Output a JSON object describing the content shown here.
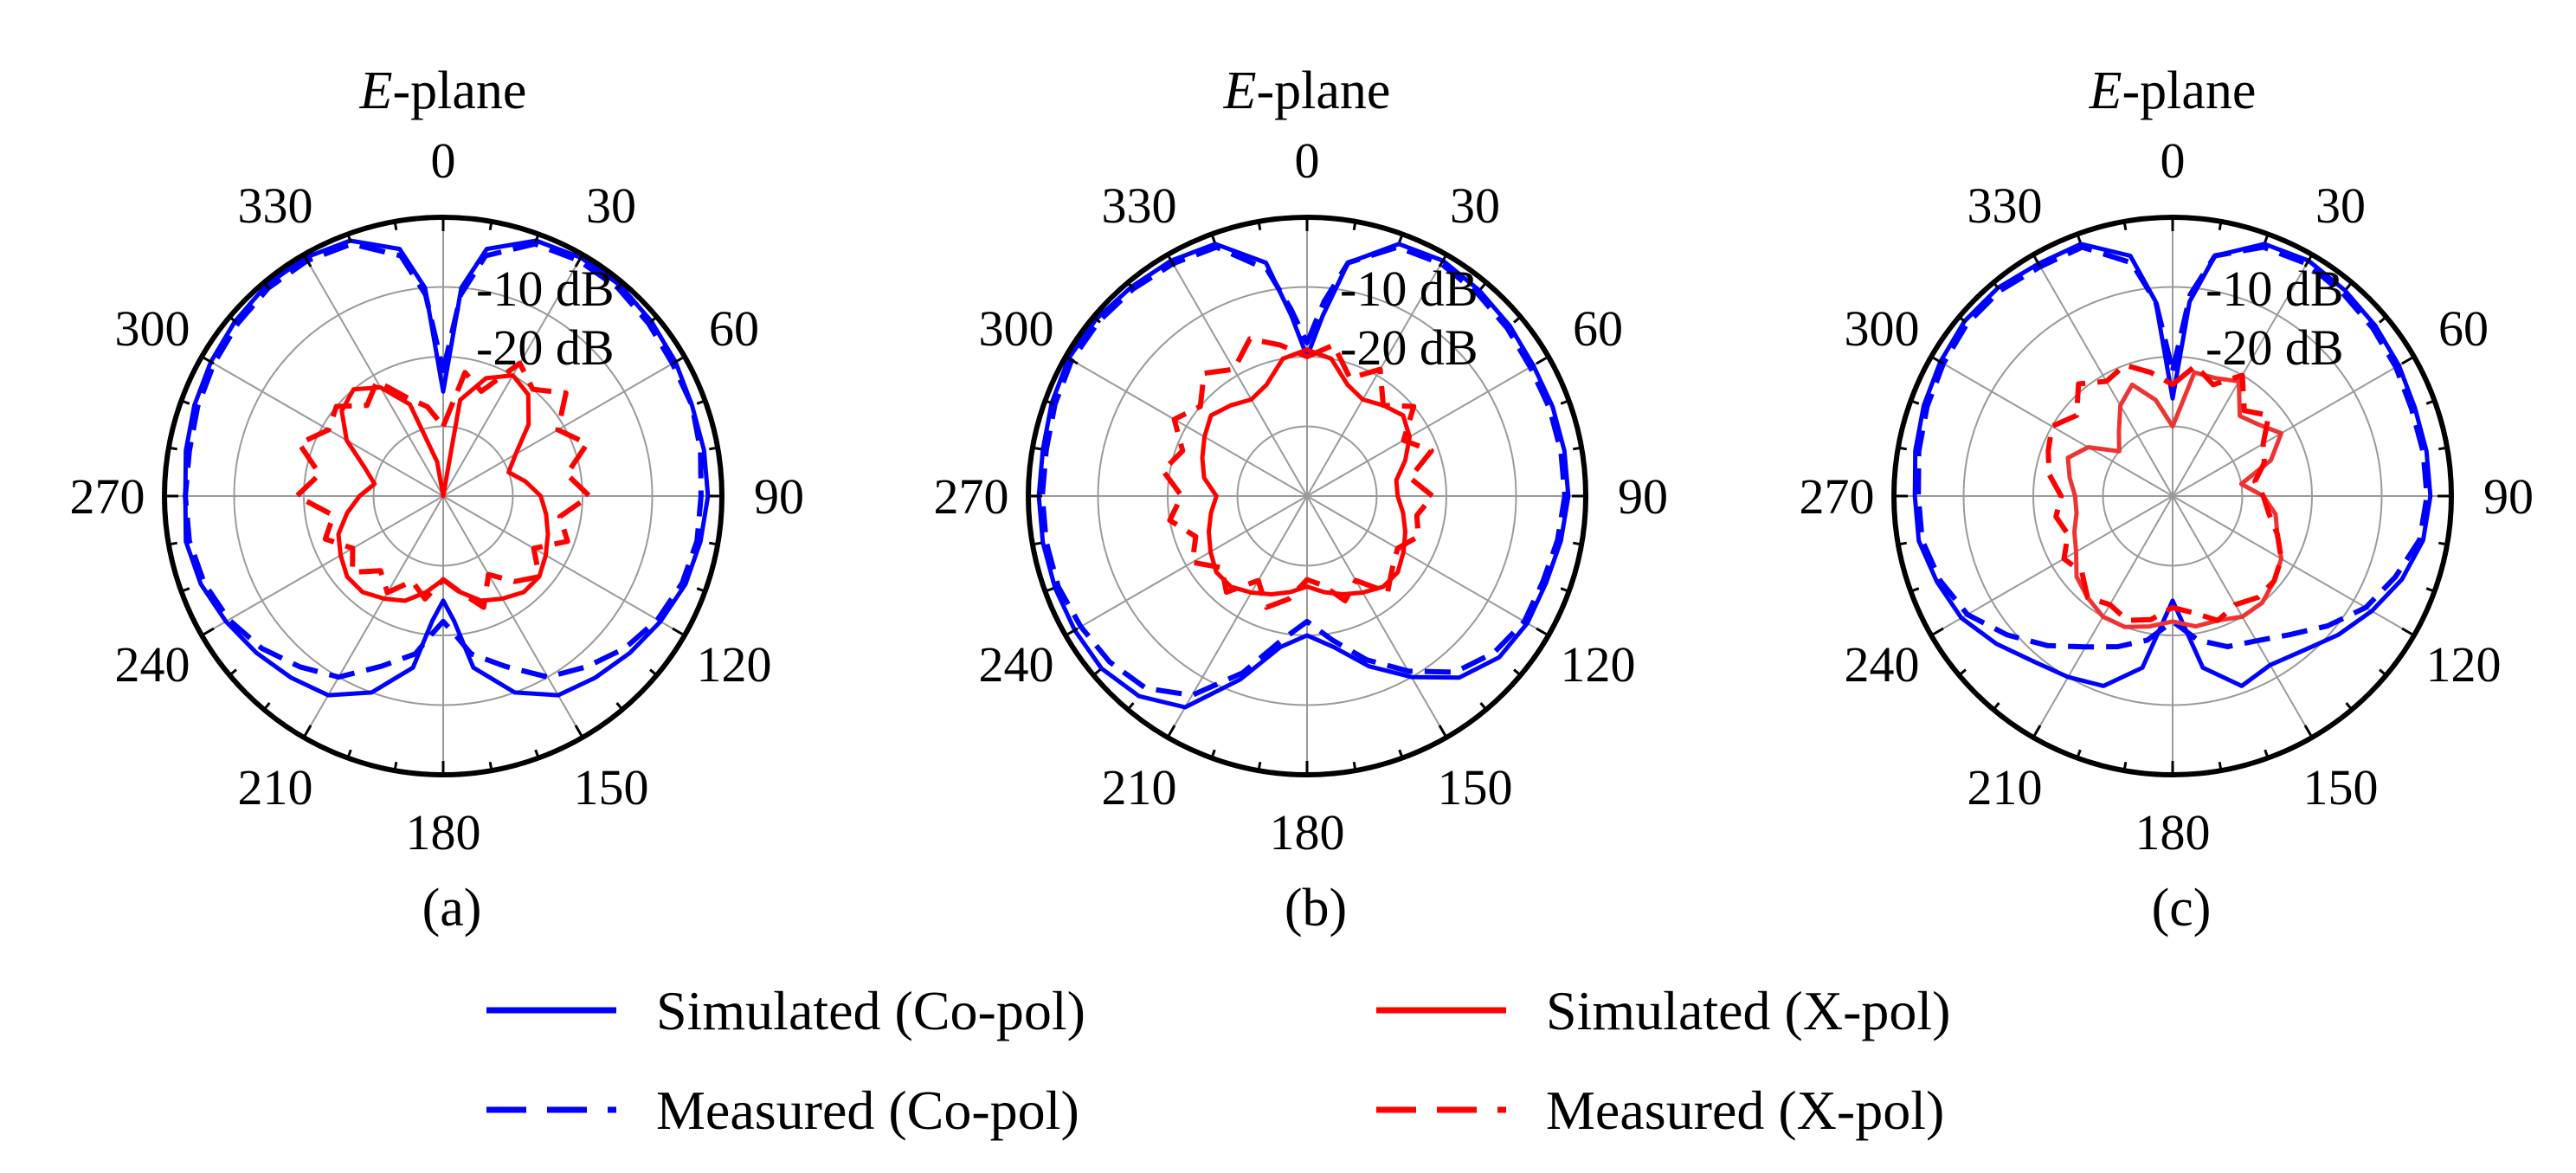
{
  "chart_data": [
    {
      "type": "polar-line",
      "panel": "(a)",
      "title_italic": "E",
      "title_rest": "-plane",
      "caption": "(a)",
      "angle_ticks": [
        "0",
        "30",
        "60",
        "90",
        "120",
        "150",
        "180",
        "210",
        "240",
        "270",
        "300",
        "330"
      ],
      "ring_labels": [
        "-10 dB",
        "-20 dB"
      ],
      "r_range_dB": [
        -40,
        0
      ],
      "series": [
        {
          "name": "Simulated (Co-pol)",
          "color": "#0000ff",
          "style": "solid",
          "angles": [
            0,
            5,
            10,
            20,
            30,
            40,
            50,
            60,
            70,
            80,
            90,
            100,
            110,
            120,
            130,
            140,
            150,
            160,
            170,
            175,
            180,
            185,
            190,
            200,
            210,
            220,
            230,
            240,
            250,
            260,
            270,
            280,
            290,
            300,
            310,
            320,
            330,
            340,
            350,
            355
          ],
          "values": [
            -25,
            -10,
            -4,
            -1,
            -0.5,
            -0.5,
            -1,
            -1.5,
            -2,
            -2,
            -2,
            -2.5,
            -3,
            -4,
            -5,
            -6,
            -7,
            -10,
            -15,
            -22,
            -25,
            -22,
            -15,
            -10,
            -7,
            -6,
            -5,
            -4,
            -3,
            -2.5,
            -3,
            -2.5,
            -2,
            -1.5,
            -1,
            -0.5,
            -0.5,
            -1,
            -4,
            -10
          ]
        },
        {
          "name": "Measured (Co-pol)",
          "color": "#0000ff",
          "style": "dashed",
          "angles": [
            0,
            5,
            10,
            20,
            30,
            40,
            50,
            60,
            70,
            80,
            90,
            100,
            110,
            120,
            130,
            140,
            150,
            160,
            170,
            175,
            180,
            185,
            190,
            200,
            210,
            220,
            230,
            240,
            250,
            260,
            270,
            280,
            290,
            300,
            310,
            320,
            330,
            340,
            350,
            355
          ],
          "values": [
            -22,
            -11,
            -5,
            -1.5,
            -1,
            -1,
            -1.5,
            -2,
            -2,
            -2.5,
            -3,
            -3,
            -3.5,
            -4.5,
            -6,
            -8,
            -10,
            -14,
            -17,
            -20,
            -22,
            -20,
            -17,
            -14,
            -10,
            -8,
            -6,
            -4.5,
            -3.5,
            -3,
            -3,
            -3,
            -2.5,
            -2,
            -1.5,
            -1,
            -1,
            -1.5,
            -5,
            -11
          ]
        },
        {
          "name": "Simulated (X-pol)",
          "color": "#ff0000",
          "style": "solid",
          "angles": [
            0,
            10,
            20,
            30,
            40,
            50,
            60,
            70,
            80,
            90,
            100,
            110,
            120,
            130,
            140,
            150,
            160,
            170,
            180,
            190,
            200,
            210,
            220,
            230,
            240,
            250,
            260,
            270,
            280,
            290,
            300,
            310,
            320,
            330,
            340,
            350
          ],
          "values": [
            -40,
            -26,
            -22,
            -20,
            -21,
            -24,
            -28,
            -30,
            -28,
            -26,
            -25,
            -24,
            -23,
            -22,
            -22,
            -23,
            -24,
            -26,
            -28,
            -26,
            -24,
            -23,
            -22,
            -22,
            -23,
            -24,
            -26,
            -28,
            -30,
            -28,
            -24,
            -21,
            -20,
            -22,
            -26,
            -35
          ]
        },
        {
          "name": "Measured (X-pol)",
          "color": "#ff0000",
          "style": "dashed",
          "angles": [
            0,
            10,
            20,
            30,
            40,
            50,
            60,
            70,
            80,
            90,
            100,
            110,
            120,
            130,
            140,
            150,
            160,
            170,
            180,
            190,
            200,
            210,
            220,
            230,
            240,
            250,
            260,
            270,
            280,
            290,
            300,
            310,
            320,
            330,
            340,
            350
          ],
          "values": [
            -30,
            -22,
            -24,
            -18,
            -20,
            -17,
            -21,
            -18,
            -22,
            -19,
            -23,
            -21,
            -25,
            -22,
            -24,
            -27,
            -23,
            -26,
            -28,
            -25,
            -27,
            -24,
            -26,
            -23,
            -25,
            -22,
            -24,
            -19,
            -22,
            -18,
            -21,
            -20,
            -23,
            -21,
            -25,
            -27
          ]
        }
      ]
    },
    {
      "type": "polar-line",
      "panel": "(b)",
      "title_italic": "E",
      "title_rest": "-plane",
      "caption": "(b)",
      "angle_ticks": [
        "0",
        "30",
        "60",
        "90",
        "120",
        "150",
        "180",
        "210",
        "240",
        "270",
        "300",
        "330"
      ],
      "ring_labels": [
        "-10 dB",
        "-20 dB"
      ],
      "r_range_dB": [
        -40,
        0
      ],
      "series": [
        {
          "name": "Simulated (Co-pol)",
          "color": "#0000ff",
          "style": "solid",
          "angles": [
            0,
            5,
            10,
            20,
            30,
            40,
            50,
            60,
            70,
            80,
            90,
            100,
            110,
            120,
            130,
            140,
            150,
            160,
            170,
            180,
            190,
            200,
            210,
            220,
            230,
            240,
            250,
            260,
            270,
            280,
            290,
            300,
            310,
            320,
            330,
            340,
            350,
            355
          ],
          "values": [
            -20,
            -14,
            -6,
            -1.5,
            -1,
            -1.5,
            -2,
            -2.5,
            -2.5,
            -2.5,
            -2.5,
            -3,
            -3.5,
            -3.5,
            -4,
            -6,
            -10,
            -14,
            -18,
            -20,
            -18,
            -12,
            -5,
            -2.5,
            -1.5,
            -1.5,
            -1.5,
            -1.5,
            -1.5,
            -1.5,
            -1,
            -0.5,
            -0.5,
            -0.8,
            -1,
            -1.5,
            -6,
            -14
          ]
        },
        {
          "name": "Measured (Co-pol)",
          "color": "#0000ff",
          "style": "dashed",
          "angles": [
            0,
            5,
            10,
            20,
            30,
            40,
            50,
            60,
            70,
            80,
            90,
            100,
            110,
            120,
            130,
            140,
            150,
            160,
            170,
            180,
            190,
            200,
            210,
            220,
            230,
            240,
            250,
            260,
            270,
            280,
            290,
            300,
            310,
            320,
            330,
            340,
            350,
            355
          ],
          "values": [
            -18,
            -12,
            -6,
            -2,
            -1.5,
            -2,
            -2.5,
            -3,
            -3,
            -3,
            -3,
            -3.5,
            -4,
            -4,
            -5,
            -7,
            -11,
            -15,
            -19,
            -22,
            -19,
            -13,
            -7,
            -4,
            -3,
            -2.5,
            -2,
            -2,
            -2,
            -2,
            -1.5,
            -1,
            -1,
            -1.2,
            -1.5,
            -2,
            -7,
            -13
          ]
        },
        {
          "name": "Simulated (X-pol)",
          "color": "#ff0000",
          "style": "solid",
          "angles": [
            0,
            10,
            20,
            30,
            40,
            50,
            60,
            70,
            80,
            90,
            100,
            110,
            120,
            130,
            140,
            150,
            160,
            170,
            180,
            190,
            200,
            210,
            220,
            230,
            240,
            250,
            260,
            270,
            280,
            290,
            300,
            310,
            320,
            330,
            340,
            350
          ],
          "values": [
            -19,
            -20,
            -23,
            -24,
            -23,
            -22,
            -23,
            -25,
            -27,
            -27,
            -26,
            -25,
            -24,
            -23,
            -23,
            -24,
            -25,
            -26,
            -27,
            -26,
            -25,
            -24,
            -23,
            -23,
            -24,
            -25,
            -26,
            -27,
            -25,
            -24,
            -23,
            -22,
            -23,
            -24,
            -23,
            -20
          ]
        },
        {
          "name": "Measured (X-pol)",
          "color": "#ff0000",
          "style": "dashed",
          "angles": [
            0,
            10,
            20,
            30,
            40,
            50,
            60,
            70,
            80,
            90,
            100,
            110,
            120,
            130,
            140,
            150,
            160,
            170,
            180,
            190,
            200,
            210,
            220,
            230,
            240,
            250,
            260,
            270,
            280,
            290,
            300,
            310,
            320,
            330,
            340,
            350
          ],
          "values": [
            -20,
            -18,
            -22,
            -19,
            -23,
            -20,
            -24,
            -21,
            -25,
            -22,
            -24,
            -23,
            -25,
            -24,
            -22,
            -26,
            -24,
            -27,
            -28,
            -25,
            -23,
            -26,
            -22,
            -24,
            -21,
            -23,
            -20,
            -22,
            -19,
            -21,
            -18,
            -20,
            -17,
            -19,
            -16,
            -18
          ]
        }
      ]
    },
    {
      "type": "polar-line",
      "panel": "(c)",
      "title_italic": "E",
      "title_rest": "-plane",
      "caption": "(c)",
      "angle_ticks": [
        "0",
        "30",
        "60",
        "90",
        "120",
        "150",
        "180",
        "210",
        "240",
        "270",
        "300",
        "330"
      ],
      "ring_labels": [
        "-10 dB",
        "-20 dB"
      ],
      "r_range_dB": [
        -40,
        0
      ],
      "series": [
        {
          "name": "Simulated (Co-pol)",
          "color": "#0000ff",
          "style": "solid",
          "angles": [
            0,
            5,
            10,
            20,
            30,
            40,
            50,
            60,
            70,
            80,
            90,
            100,
            110,
            120,
            130,
            140,
            150,
            160,
            170,
            180,
            190,
            200,
            210,
            220,
            230,
            240,
            250,
            260,
            270,
            280,
            290,
            300,
            310,
            320,
            330,
            340,
            350,
            355
          ],
          "values": [
            -26,
            -12,
            -5,
            -1.5,
            -1,
            -1.5,
            -2,
            -2.5,
            -3,
            -3,
            -3,
            -3.5,
            -5,
            -7,
            -9,
            -11,
            -12,
            -11,
            -15,
            -25,
            -15,
            -11,
            -10,
            -9,
            -7,
            -5,
            -4,
            -3,
            -3,
            -2.5,
            -2,
            -1.5,
            -1,
            -1,
            -1.5,
            -1.5,
            -5,
            -12
          ]
        },
        {
          "name": "Measured (Co-pol)",
          "color": "#0000ff",
          "style": "dashed",
          "angles": [
            0,
            5,
            10,
            20,
            30,
            40,
            50,
            60,
            70,
            80,
            90,
            100,
            110,
            120,
            130,
            140,
            150,
            160,
            170,
            180,
            190,
            200,
            210,
            220,
            230,
            240,
            250,
            260,
            270,
            280,
            290,
            300,
            310,
            320,
            330,
            340,
            350,
            355
          ],
          "values": [
            -22,
            -11,
            -5,
            -2,
            -1.5,
            -2,
            -2.5,
            -3,
            -3.5,
            -3.5,
            -3.5,
            -4,
            -6,
            -8,
            -11,
            -14,
            -16,
            -17,
            -19,
            -22,
            -19,
            -17,
            -15,
            -12,
            -9,
            -6,
            -4.5,
            -3.5,
            -3.5,
            -3,
            -2.5,
            -2,
            -1.5,
            -1.5,
            -2,
            -2,
            -6,
            -12
          ]
        },
        {
          "name": "Simulated (X-pol)",
          "color": "#ee3333",
          "style": "solid",
          "angles": [
            0,
            10,
            20,
            30,
            40,
            50,
            60,
            70,
            80,
            90,
            100,
            110,
            120,
            130,
            140,
            150,
            160,
            170,
            180,
            190,
            200,
            210,
            220,
            230,
            240,
            250,
            260,
            270,
            280,
            290,
            300,
            310,
            320,
            330,
            340,
            350
          ],
          "values": [
            -30,
            -22,
            -22,
            -21,
            -25,
            -24,
            -22,
            -25,
            -30,
            -27,
            -25,
            -24,
            -22,
            -21,
            -20,
            -20,
            -21,
            -21,
            -22,
            -21,
            -20,
            -20,
            -21,
            -22,
            -24,
            -25,
            -26,
            -26,
            -25,
            -24,
            -26,
            -30,
            -28,
            -25,
            -23,
            -26
          ]
        },
        {
          "name": "Measured (X-pol)",
          "color": "#ff0000",
          "style": "dashed",
          "angles": [
            0,
            10,
            20,
            30,
            40,
            50,
            60,
            70,
            80,
            90,
            100,
            110,
            120,
            130,
            140,
            150,
            160,
            170,
            180,
            190,
            200,
            210,
            220,
            230,
            240,
            250,
            260,
            270,
            280,
            290,
            300,
            310,
            320,
            330,
            340,
            350
          ],
          "values": [
            -24,
            -21,
            -23,
            -20,
            -24,
            -22,
            -25,
            -26,
            -28,
            -27,
            -26,
            -24,
            -22,
            -21,
            -21,
            -22,
            -21,
            -23,
            -24,
            -22,
            -21,
            -22,
            -21,
            -23,
            -22,
            -24,
            -23,
            -24,
            -22,
            -21,
            -20,
            -22,
            -19,
            -21,
            -20,
            -22
          ]
        }
      ]
    }
  ],
  "legend": [
    {
      "label": "Simulated (Co-pol)",
      "color": "#0000ff",
      "style": "solid"
    },
    {
      "label": "Simulated (X-pol)",
      "color": "#ff0000",
      "style": "solid"
    },
    {
      "label": "Measured (Co-pol)",
      "color": "#0000ff",
      "style": "dashed"
    },
    {
      "label": "Measured (X-pol)",
      "color": "#ff0000",
      "style": "dashed"
    }
  ]
}
